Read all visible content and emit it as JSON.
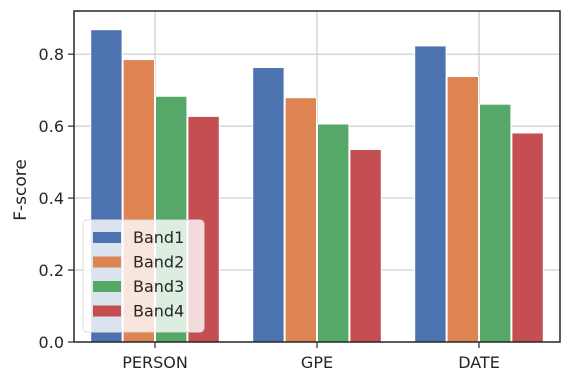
{
  "chart_data": {
    "type": "bar",
    "title": "",
    "xlabel": "",
    "ylabel": "F-score",
    "categories": [
      "PERSON",
      "GPE",
      "DATE"
    ],
    "series": [
      {
        "name": "Band1",
        "values": [
          0.868,
          0.763,
          0.823
        ],
        "color": "#4c72b0"
      },
      {
        "name": "Band2",
        "values": [
          0.785,
          0.679,
          0.738
        ],
        "color": "#dd8452"
      },
      {
        "name": "Band3",
        "values": [
          0.683,
          0.606,
          0.661
        ],
        "color": "#55a868"
      },
      {
        "name": "Band4",
        "values": [
          0.627,
          0.535,
          0.581
        ],
        "color": "#c44e52"
      }
    ],
    "ylim": [
      0,
      0.92
    ],
    "yticks": [
      0.0,
      0.2,
      0.4,
      0.6,
      0.8
    ],
    "ytick_labels": [
      "0.0",
      "0.2",
      "0.4",
      "0.6",
      "0.8"
    ],
    "grid": true,
    "legend_position": "lower-left"
  }
}
